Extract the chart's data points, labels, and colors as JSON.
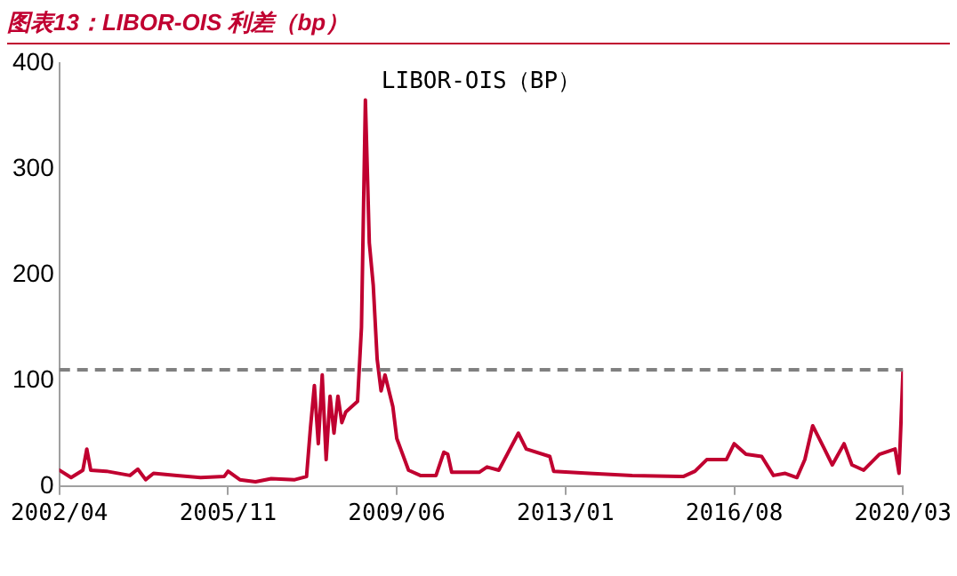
{
  "chart_data": {
    "type": "line",
    "title": "图表13：LIBOR-OIS 利差（bp）",
    "subtitle": "LIBOR-OIS（BP）",
    "x": [
      "2002-04",
      "2002-07",
      "2002-10",
      "2002-11",
      "2002-12",
      "2003-04",
      "2003-10",
      "2003-12",
      "2004-02",
      "2004-04",
      "2004-10",
      "2005-04",
      "2005-10",
      "2005-11",
      "2006-02",
      "2006-06",
      "2006-10",
      "2007-04",
      "2007-07",
      "2007-08",
      "2007-09",
      "2007-10",
      "2007-11",
      "2007-12",
      "2008-01",
      "2008-02",
      "2008-03",
      "2008-04",
      "2008-05",
      "2008-08",
      "2008-09",
      "2008-10",
      "2008-11",
      "2008-12",
      "2009-01",
      "2009-02",
      "2009-03",
      "2009-05",
      "2009-06",
      "2009-07",
      "2009-09",
      "2009-12",
      "2010-04",
      "2010-06",
      "2010-07",
      "2010-08",
      "2011-03",
      "2011-05",
      "2011-08",
      "2012-01",
      "2012-03",
      "2012-09",
      "2012-10",
      "2013-07",
      "2014-06",
      "2015-07",
      "2015-10",
      "2016-01",
      "2016-06",
      "2016-08",
      "2016-11",
      "2017-03",
      "2017-06",
      "2017-09",
      "2017-12",
      "2018-02",
      "2018-04",
      "2018-07",
      "2018-09",
      "2018-12",
      "2019-02",
      "2019-05",
      "2019-09",
      "2020-01",
      "2020-02",
      "2020-03"
    ],
    "series": [
      {
        "color": "#c00030",
        "values": [
          15,
          8,
          15,
          35,
          15,
          14,
          10,
          16,
          6,
          12,
          10,
          8,
          9,
          14,
          6,
          4,
          7,
          6,
          9,
          55,
          95,
          40,
          105,
          25,
          85,
          50,
          85,
          60,
          70,
          80,
          150,
          365,
          230,
          190,
          120,
          90,
          105,
          75,
          45,
          35,
          15,
          10,
          10,
          32,
          30,
          13,
          13,
          18,
          15,
          50,
          35,
          28,
          14,
          12,
          10,
          9,
          14,
          25,
          25,
          40,
          30,
          28,
          10,
          12,
          8,
          25,
          57,
          35,
          20,
          40,
          20,
          15,
          30,
          35,
          12,
          108
        ]
      }
    ],
    "xlim": [
      "2002-04",
      "2020-03"
    ],
    "xticks": [
      {
        "value": "2002-04",
        "label": "2002/04"
      },
      {
        "value": "2005-11",
        "label": "2005/11"
      },
      {
        "value": "2009-06",
        "label": "2009/06"
      },
      {
        "value": "2013-01",
        "label": "2013/01"
      },
      {
        "value": "2016-08",
        "label": "2016/08"
      },
      {
        "value": "2020-03",
        "label": "2020/03"
      }
    ],
    "ylim": [
      0,
      400
    ],
    "yticks": [
      0,
      100,
      200,
      300,
      400
    ],
    "ref_lines": [
      {
        "axis": "y",
        "value": 110,
        "color": "#808080",
        "line_style": "dashed"
      }
    ],
    "grid": false,
    "legend": false,
    "marker": "none",
    "line_style": "solid"
  }
}
